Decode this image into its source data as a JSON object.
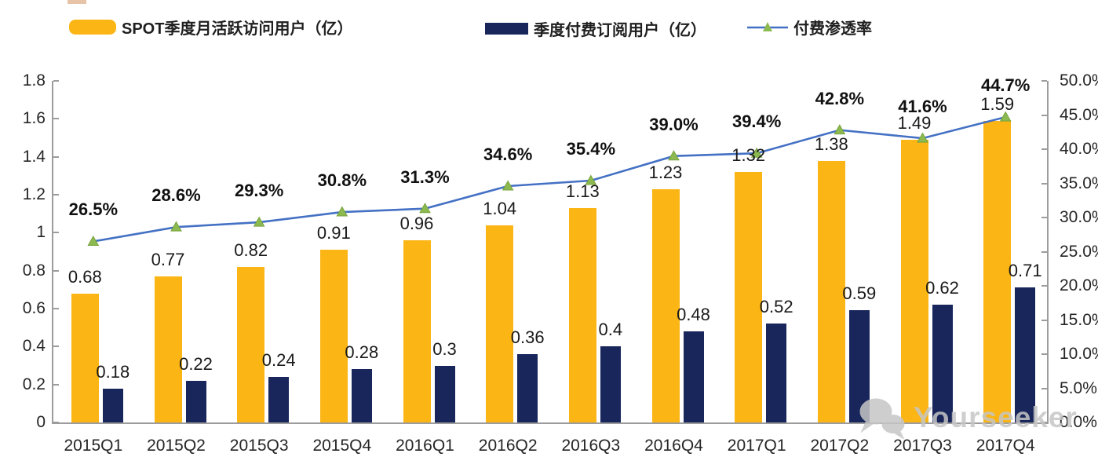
{
  "legend": {
    "items": [
      {
        "label": "SPOT季度月活跃访问用户（亿）",
        "color": "#FBB514",
        "type": "bar-swatch"
      },
      {
        "label": "季度付费订阅用户（亿）",
        "color": "#18265B",
        "type": "bar-swatch"
      },
      {
        "label": "付费渗透率",
        "color": "#4471C4",
        "marker_color": "#8CBA50",
        "type": "line-swatch"
      }
    ]
  },
  "chart_data": {
    "type": "bar",
    "title": "",
    "categories": [
      "2015Q1",
      "2015Q2",
      "2015Q3",
      "2015Q4",
      "2016Q1",
      "2016Q2",
      "2016Q3",
      "2016Q4",
      "2017Q1",
      "2017Q2",
      "2017Q3",
      "2017Q4"
    ],
    "series": [
      {
        "name": "SPOT季度月活跃访问用户（亿）",
        "type": "bar",
        "axis": "left",
        "color": "#FBB514",
        "values": [
          0.68,
          0.77,
          0.82,
          0.91,
          0.96,
          1.04,
          1.13,
          1.23,
          1.32,
          1.38,
          1.49,
          1.59
        ],
        "labels": [
          "0.68",
          "0.77",
          "0.82",
          "0.91",
          "0.96",
          "1.04",
          "1.13",
          "1.23",
          "1.32",
          "1.38",
          "1.49",
          "1.59"
        ]
      },
      {
        "name": "季度付费订阅用户（亿）",
        "type": "bar",
        "axis": "left",
        "color": "#18265B",
        "values": [
          0.18,
          0.22,
          0.24,
          0.28,
          0.3,
          0.36,
          0.4,
          0.48,
          0.52,
          0.59,
          0.62,
          0.71
        ],
        "labels": [
          "0.18",
          "0.22",
          "0.24",
          "0.28",
          "0.3",
          "0.36",
          "0.4",
          "0.48",
          "0.52",
          "0.59",
          "0.62",
          "0.71"
        ]
      },
      {
        "name": "付费渗透率",
        "type": "line",
        "axis": "right",
        "color": "#4471C4",
        "marker": "triangle",
        "marker_color": "#8CBA50",
        "marker_stroke": "#77A33E",
        "values": [
          26.5,
          28.6,
          29.3,
          30.8,
          31.3,
          34.6,
          35.4,
          39.0,
          39.4,
          42.8,
          41.6,
          44.7
        ],
        "labels": [
          "26.5%",
          "28.6%",
          "29.3%",
          "30.8%",
          "31.3%",
          "34.6%",
          "35.4%",
          "39.0%",
          "39.4%",
          "42.8%",
          "41.6%",
          "44.7%"
        ]
      }
    ],
    "axes": {
      "left": {
        "min": 0,
        "max": 1.8,
        "step": 0.2,
        "tick_labels": [
          "0",
          "0.2",
          "0.4",
          "0.6",
          "0.8",
          "1",
          "1.2",
          "1.4",
          "1.6",
          "1.8"
        ]
      },
      "right": {
        "min": 0,
        "max": 50,
        "step": 5,
        "tick_labels": [
          "0.0%",
          "5.0%",
          "10.0%",
          "15.0%",
          "20.0%",
          "25.0%",
          "30.0%",
          "35.0%",
          "40.0%",
          "45.0%",
          "50.0%"
        ]
      }
    },
    "grid": false,
    "legend_position": "top",
    "axis_color": "#9C9C9C"
  },
  "watermark": {
    "icon": "wechat-icon",
    "text": "Yourseeker",
    "color": "#C6C6C6"
  },
  "decor": {
    "top_edge_artifact_color": "#C97B3B"
  }
}
